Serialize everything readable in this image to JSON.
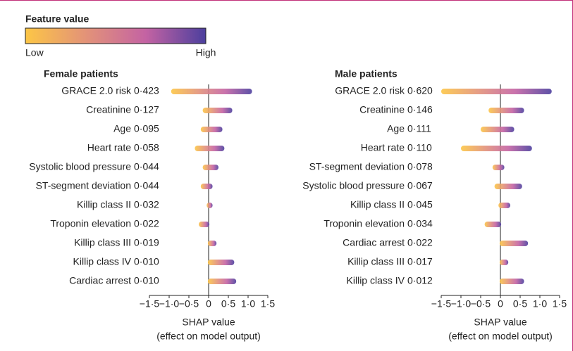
{
  "legend": {
    "title": "Feature value",
    "low": "Low",
    "high": "High",
    "colors": [
      "#fcc646",
      "#e39378",
      "#c463a3",
      "#4c3f9e"
    ]
  },
  "chart_data": [
    {
      "type": "beeswarm",
      "title": "Female patients",
      "categories": [
        "GRACE 2.0 risk",
        "Creatinine",
        "Age",
        "Heart rate",
        "Systolic blood pressure",
        "ST-segment deviation",
        "Killip class II",
        "Troponin elevation",
        "Killip class III",
        "Killip class IV",
        "Cardiac arrest"
      ],
      "values": [
        0.423,
        0.127,
        0.095,
        0.058,
        0.044,
        0.044,
        0.032,
        0.022,
        0.019,
        0.01,
        0.01
      ],
      "value_labels": [
        "0·423",
        "0·127",
        "0·095",
        "0·058",
        "0·044",
        "0·044",
        "0·032",
        "0·022",
        "0·019",
        "0·010",
        "0·010"
      ],
      "ranges": [
        [
          -0.95,
          1.1
        ],
        [
          -0.15,
          0.6
        ],
        [
          -0.2,
          0.35
        ],
        [
          -0.35,
          0.4
        ],
        [
          -0.15,
          0.25
        ],
        [
          -0.2,
          0.1
        ],
        [
          -0.05,
          0.1
        ],
        [
          -0.25,
          0.02
        ],
        [
          -0.02,
          0.2
        ],
        [
          -0.02,
          0.65
        ],
        [
          -0.02,
          0.7
        ]
      ],
      "xlabel": "SHAP value",
      "xlabel_sub": "(effect on model output)",
      "xlim": [
        -1.5,
        1.5
      ],
      "xticks": [
        {
          "value": -1.5,
          "label": "−1·5"
        },
        {
          "value": -1,
          "label": "−1·0"
        },
        {
          "value": -0.5,
          "label": "−0·5"
        },
        0,
        {
          "value": 0.5,
          "label": "0·5"
        },
        {
          "value": 1,
          "label": "1·0"
        },
        {
          "value": 1.5,
          "label": "1·5"
        }
      ]
    },
    {
      "type": "beeswarm",
      "title": "Male patients",
      "categories": [
        "GRACE 2.0 risk",
        "Creatinine",
        "Age",
        "Heart rate",
        "ST-segment deviation",
        "Systolic blood pressure",
        "Killip class II",
        "Troponin elevation",
        "Cardiac arrest",
        "Killip class III",
        "Killip class IV"
      ],
      "values": [
        0.62,
        0.146,
        0.111,
        0.11,
        0.078,
        0.067,
        0.045,
        0.034,
        0.022,
        0.017,
        0.012
      ],
      "value_labels": [
        "0·620",
        "0·146",
        "0·111",
        "0·110",
        "0·078",
        "0·067",
        "0·045",
        "0·034",
        "0·022",
        "0·017",
        "0·012"
      ],
      "ranges": [
        [
          -1.5,
          1.3
        ],
        [
          -0.3,
          0.6
        ],
        [
          -0.5,
          0.35
        ],
        [
          -1.0,
          0.8
        ],
        [
          -0.2,
          0.1
        ],
        [
          -0.15,
          0.55
        ],
        [
          -0.05,
          0.25
        ],
        [
          -0.4,
          0.02
        ],
        [
          -0.02,
          0.7
        ],
        [
          -0.02,
          0.2
        ],
        [
          -0.02,
          0.6
        ]
      ],
      "xlabel": "SHAP value",
      "xlabel_sub": "(effect on model output)",
      "xlim": [
        -1.5,
        1.5
      ],
      "xticks": [
        {
          "value": -1.5,
          "label": "−1·5"
        },
        {
          "value": -1,
          "label": "−1·0"
        },
        {
          "value": -0.5,
          "label": "−0·5"
        },
        0,
        {
          "value": 0.5,
          "label": "0·5"
        },
        {
          "value": 1,
          "label": "1·0"
        },
        {
          "value": 1.5,
          "label": "1·5"
        }
      ]
    }
  ]
}
